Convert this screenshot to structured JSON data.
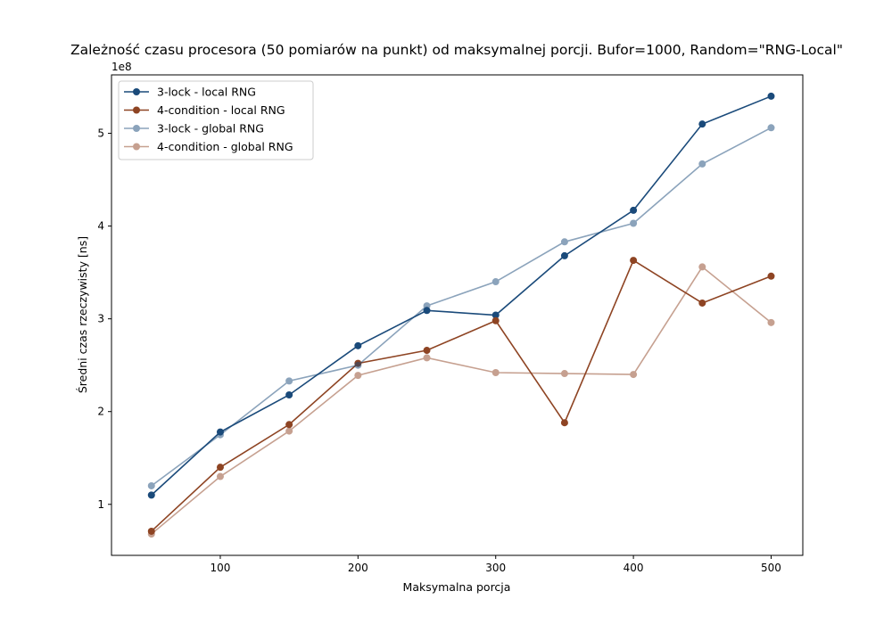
{
  "chart_data": {
    "type": "line",
    "title": "Zależność czasu procesora (50 pomiarów na punkt) od maksymalnej porcji. Bufor=1000, Random=\"RNG-Local\"",
    "xlabel": "Maksymalna porcja",
    "ylabel": "Średni czas rzeczywisty [ns]",
    "y_multiplier_label": "1e8",
    "x": [
      50,
      100,
      150,
      200,
      250,
      300,
      350,
      400,
      450,
      500
    ],
    "xlim": [
      21,
      523
    ],
    "ylim": [
      0.45,
      5.63
    ],
    "xticks": [
      100,
      200,
      300,
      400,
      500
    ],
    "yticks": [
      1,
      2,
      3,
      4,
      5
    ],
    "xtick_labels": [
      "100",
      "200",
      "300",
      "400",
      "500"
    ],
    "ytick_labels": [
      "1",
      "2",
      "3",
      "4",
      "5"
    ],
    "grid": false,
    "legend_position": "top-left",
    "series": [
      {
        "name": "3-lock - local RNG",
        "color": "#1a4a7a",
        "opacity": 1.0,
        "values": [
          1.1,
          1.78,
          2.18,
          2.71,
          3.09,
          3.04,
          3.68,
          4.17,
          5.1,
          5.4
        ]
      },
      {
        "name": "4-condition - local RNG",
        "color": "#8e4423",
        "opacity": 1.0,
        "values": [
          0.71,
          1.4,
          1.86,
          2.52,
          2.66,
          2.98,
          1.88,
          3.63,
          3.17,
          3.46
        ]
      },
      {
        "name": "3-lock - global RNG",
        "color": "#1a4a7a",
        "opacity": 0.5,
        "values": [
          1.2,
          1.75,
          2.33,
          2.5,
          3.14,
          3.4,
          3.83,
          4.03,
          4.67,
          5.06
        ]
      },
      {
        "name": "4-condition - global RNG",
        "color": "#8e4423",
        "opacity": 0.5,
        "values": [
          0.68,
          1.3,
          1.79,
          2.39,
          2.58,
          2.42,
          2.41,
          2.4,
          3.56,
          2.96
        ]
      }
    ]
  }
}
